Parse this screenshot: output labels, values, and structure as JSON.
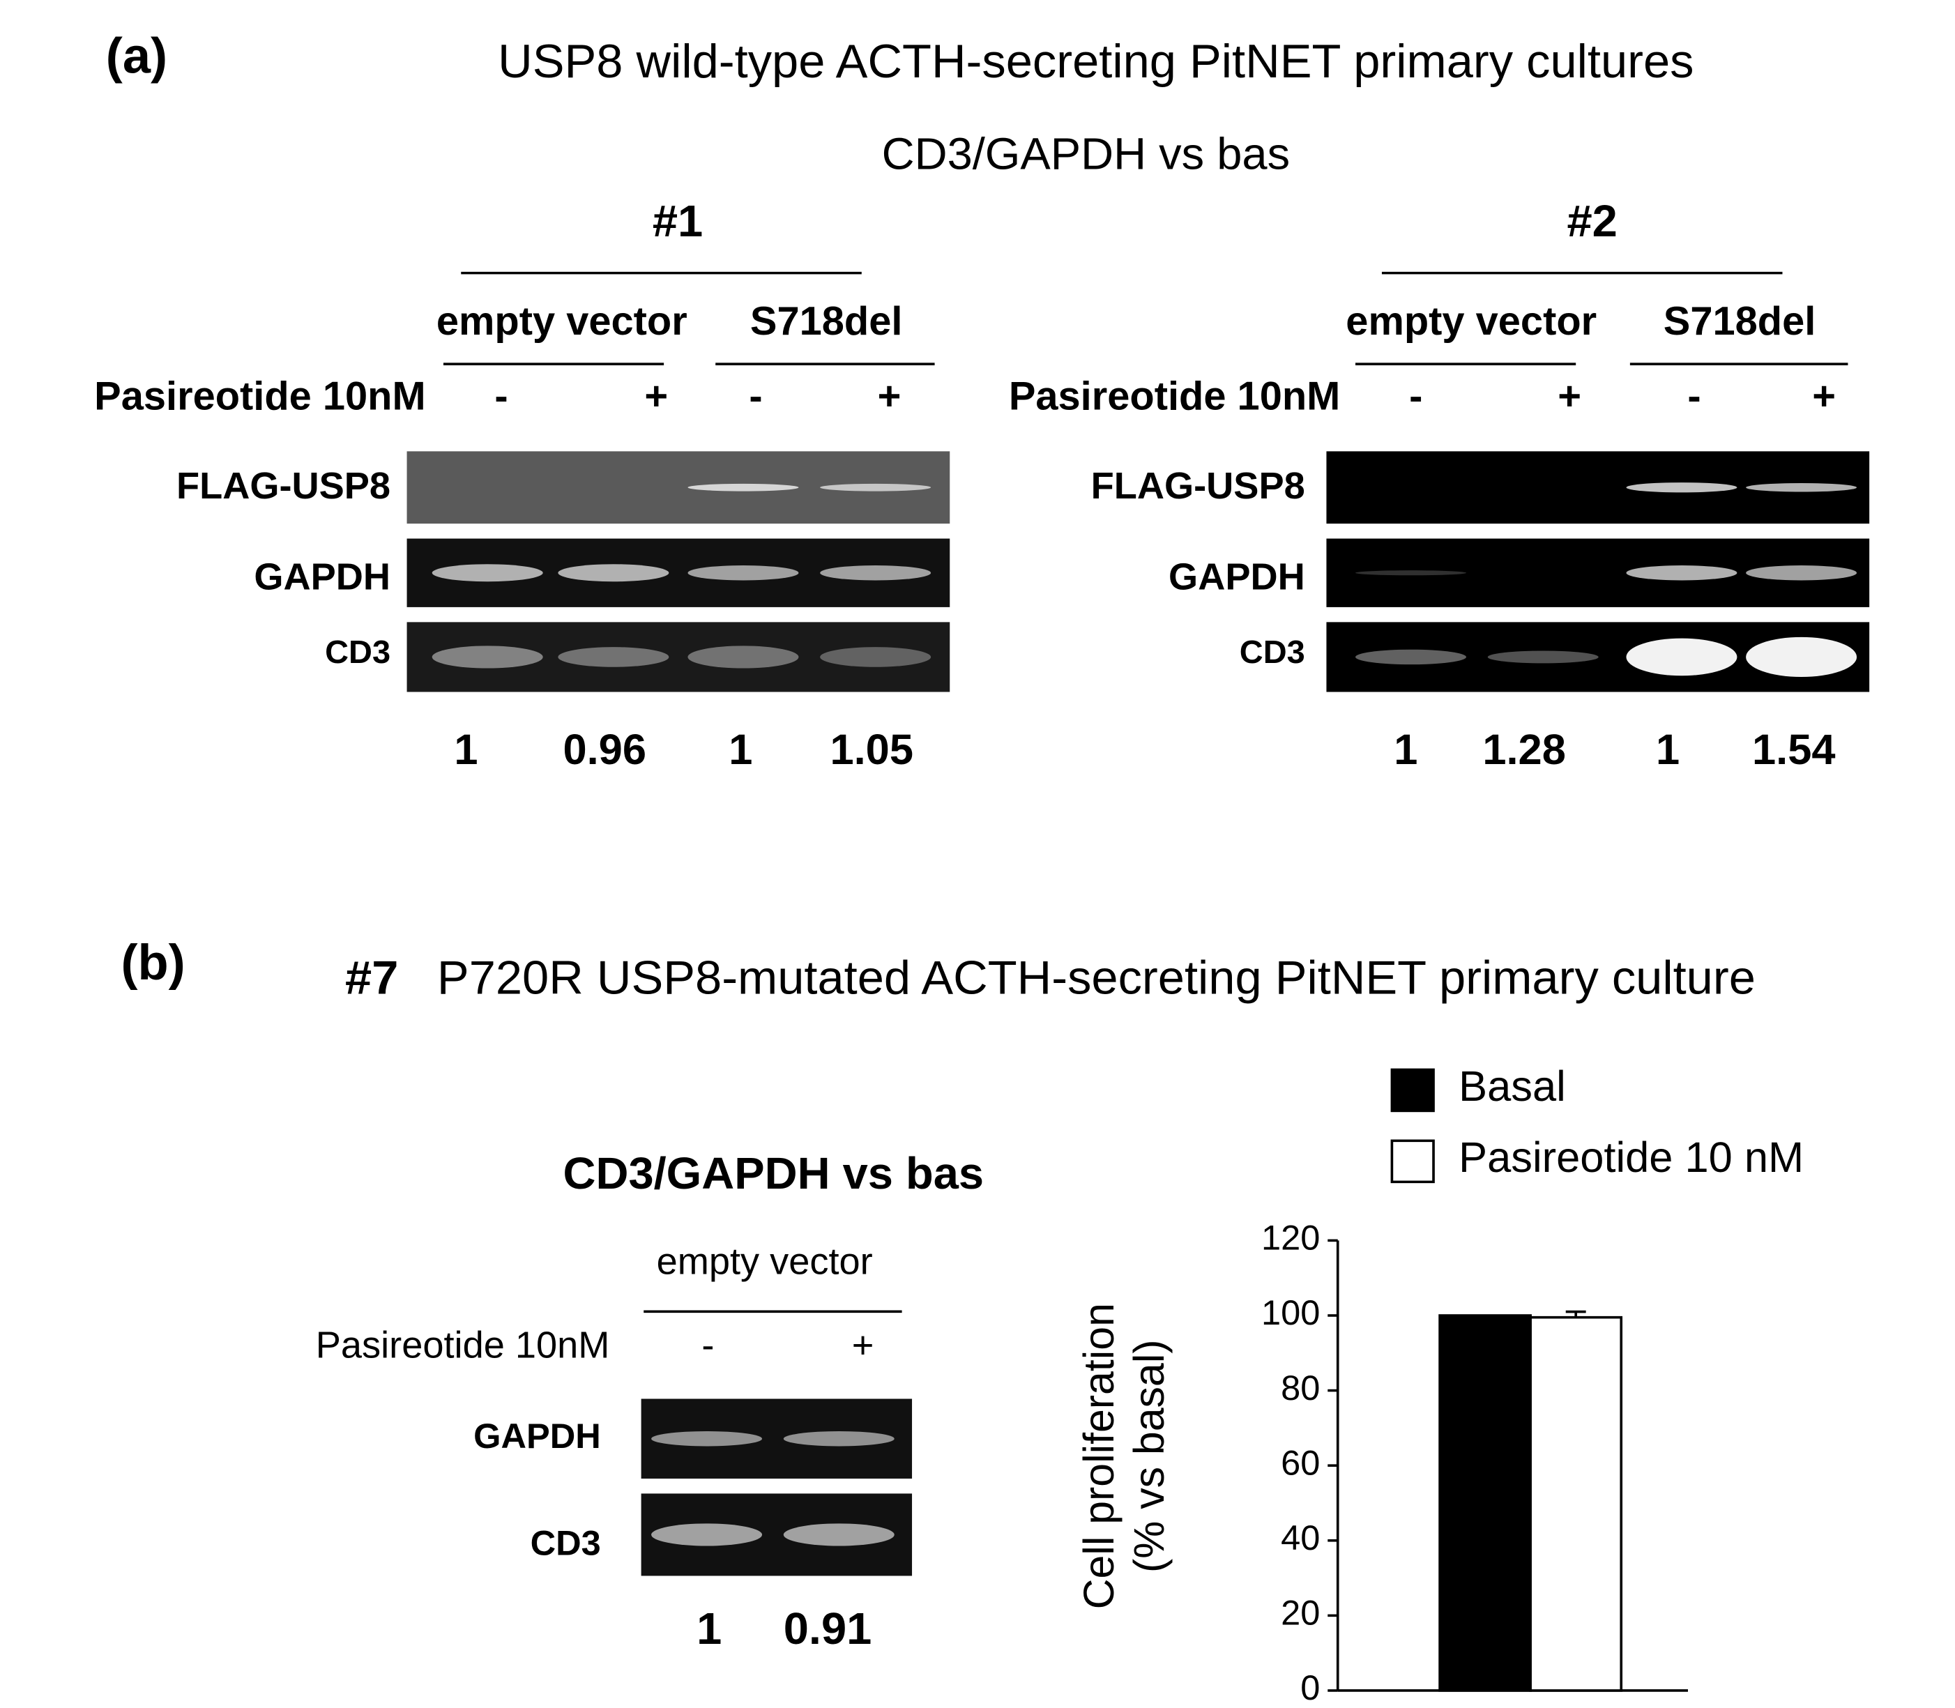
{
  "panel_a": {
    "label": "(a)",
    "title": "USP8 wild-type ACTH-secreting PitNET primary cultures",
    "subtitle": "CD3/GAPDH vs bas",
    "blots": [
      {
        "name": "#1",
        "groups": [
          "empty vector",
          "S718del"
        ],
        "treatment": "Pasireotide 10nM",
        "lanes": [
          "-",
          "+",
          "-",
          "+"
        ],
        "rows": [
          "FLAG-USP8",
          "GAPDH",
          "CD3"
        ],
        "ratios": [
          1,
          0.96,
          1,
          1.05
        ]
      },
      {
        "name": "#2",
        "groups": [
          "empty vector",
          "S718del"
        ],
        "treatment": "Pasireotide 10nM",
        "lanes": [
          "-",
          "+",
          "-",
          "+"
        ],
        "rows": [
          "FLAG-USP8",
          "GAPDH",
          "CD3"
        ],
        "ratios": [
          1,
          1.28,
          1,
          1.54
        ]
      }
    ]
  },
  "panel_b": {
    "label": "(b)",
    "sample": "#7",
    "title": "P720R USP8-mutated ACTH-secreting PitNET primary culture",
    "blot": {
      "title": "CD3/GAPDH vs bas",
      "group": "empty vector",
      "treatment": "Pasireotide 10nM",
      "lanes": [
        "-",
        "+"
      ],
      "rows": [
        "GAPDH",
        "CD3"
      ],
      "ratios": [
        1,
        0.91
      ]
    }
  },
  "chart_data": {
    "type": "bar",
    "categories": [
      null
    ],
    "series": [
      {
        "name": "Basal",
        "color": "#000000",
        "values": [
          100
        ]
      },
      {
        "name": "Pasireotide 10 nM",
        "color": "#ffffff",
        "values": [
          99.5
        ],
        "errors": [
          1.5
        ]
      }
    ],
    "ylabel": [
      "Cell proliferation",
      "(% vs basal)"
    ],
    "ylim": [
      0,
      120
    ],
    "yticks": [
      0,
      20,
      40,
      60,
      80,
      100,
      120
    ],
    "legend": "top"
  }
}
